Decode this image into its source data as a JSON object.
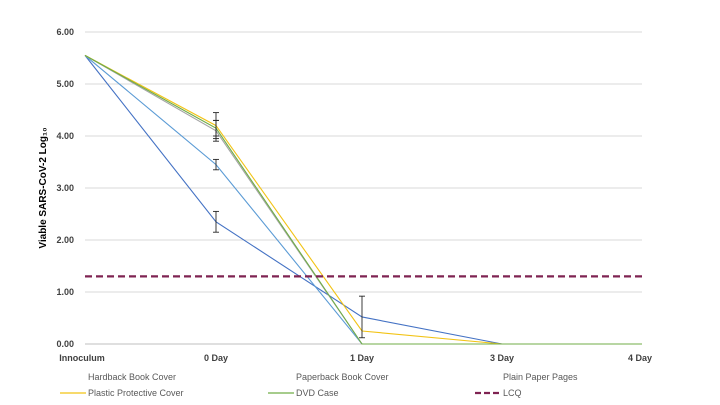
{
  "chart_data": {
    "type": "line",
    "title": "",
    "ylabel": "Viable SARS-CoV-2 Log₁₀",
    "xlabel": "",
    "ylim": [
      0,
      6
    ],
    "yticks": [
      "0.00",
      "1.00",
      "2.00",
      "3.00",
      "4.00",
      "5.00",
      "6.00"
    ],
    "categories": [
      "Innoculum",
      "0 Day",
      "1 Day",
      "3 Day",
      "4 Day"
    ],
    "grid": true,
    "legend_position": "bottom",
    "series": [
      {
        "name": "Hardback Book Cover",
        "color": "#4472C4",
        "values": [
          5.55,
          2.35,
          0.52,
          0,
          0
        ],
        "errors": [
          null,
          0.2,
          0.4,
          null,
          null
        ]
      },
      {
        "name": "Paperback Book Cover",
        "color": "#5B9BD5",
        "values": [
          5.55,
          3.45,
          0,
          0,
          0
        ],
        "errors": [
          null,
          0.1,
          null,
          null,
          null
        ]
      },
      {
        "name": "Plain Paper Pages",
        "color": "#A5A5A5",
        "values": [
          5.55,
          4.1,
          0,
          0,
          0
        ],
        "errors": [
          null,
          0.2,
          null,
          null,
          null
        ]
      },
      {
        "name": "Plastic Protective Cover",
        "color": "#F2C314",
        "values": [
          5.55,
          4.2,
          0.25,
          0,
          0
        ],
        "errors": [
          null,
          0.25,
          null,
          null,
          null
        ]
      },
      {
        "name": "DVD Case",
        "color": "#70AD47",
        "values": [
          5.55,
          4.15,
          0,
          0,
          0
        ],
        "errors": [
          null,
          0.15,
          null,
          null,
          null
        ]
      },
      {
        "name": "LCQ",
        "color": "#7F2352",
        "values": [
          1.3,
          1.3,
          1.3,
          1.3,
          1.3
        ],
        "dashed": true
      }
    ]
  }
}
